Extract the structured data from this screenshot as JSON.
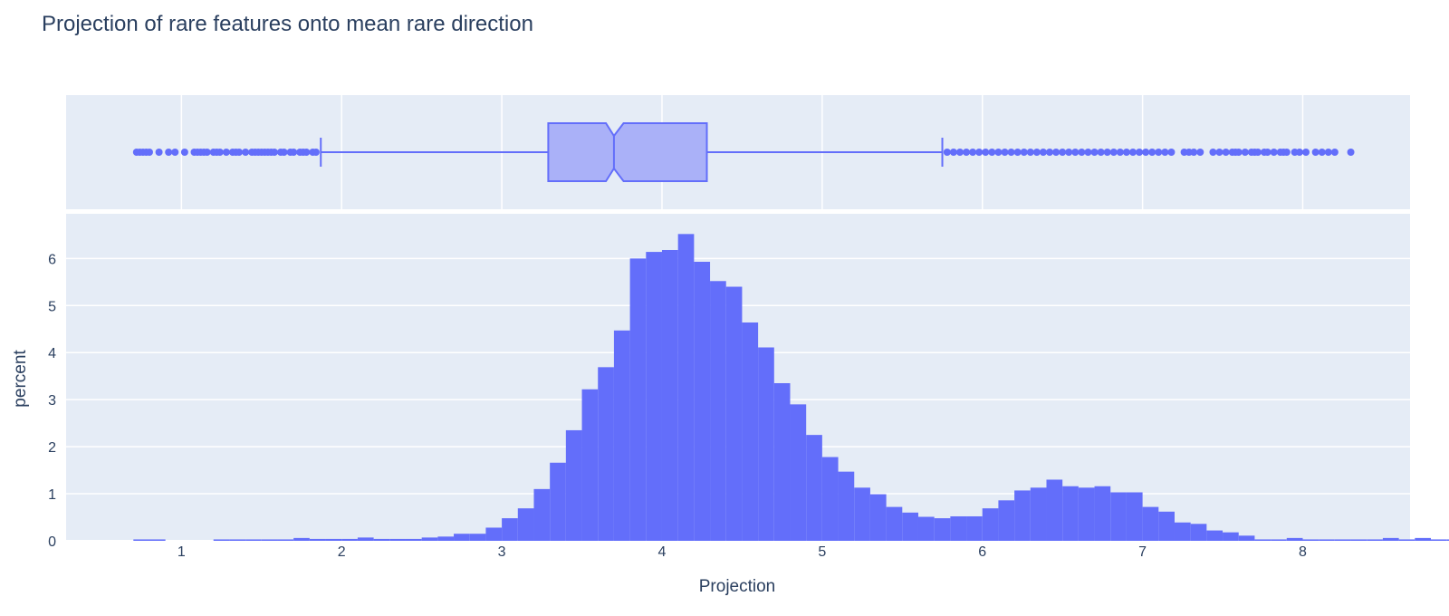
{
  "chart_data": {
    "type": "histogram",
    "title": "Projection of rare features onto mean rare direction",
    "xlabel": "Projection",
    "ylabel": "percent",
    "xlim": [
      0.28,
      8.67
    ],
    "ylim": [
      0,
      6.95
    ],
    "x_ticks": [
      1,
      2,
      3,
      4,
      5,
      6,
      7,
      8
    ],
    "y_ticks": [
      0,
      1,
      2,
      3,
      4,
      5,
      6
    ],
    "grid": true,
    "bin_width": 0.1,
    "bin_start": 0.7,
    "values": [
      0.03,
      0.03,
      0,
      0,
      0,
      0.03,
      0.03,
      0.03,
      0.03,
      0.03,
      0.06,
      0.04,
      0.04,
      0.04,
      0.07,
      0.04,
      0.04,
      0.04,
      0.07,
      0.09,
      0.15,
      0.15,
      0.28,
      0.48,
      0.69,
      1.1,
      1.66,
      2.35,
      3.22,
      3.69,
      4.47,
      6.0,
      6.14,
      6.18,
      6.52,
      5.93,
      5.52,
      5.4,
      4.64,
      4.11,
      3.35,
      2.9,
      2.25,
      1.78,
      1.47,
      1.13,
      0.99,
      0.72,
      0.6,
      0.51,
      0.48,
      0.52,
      0.52,
      0.69,
      0.86,
      1.07,
      1.13,
      1.3,
      1.16,
      1.13,
      1.16,
      1.03,
      1.03,
      0.72,
      0.62,
      0.39,
      0.36,
      0.22,
      0.18,
      0.11,
      0.03,
      0.03,
      0.06,
      0.03,
      0.03,
      0.03,
      0.03,
      0.03,
      0.06,
      0.03,
      0.06,
      0.03,
      0.03,
      0.02
    ],
    "box": {
      "q1": 3.29,
      "median": 3.7,
      "q3": 4.28,
      "lower_fence": 1.87,
      "upper_fence": 5.75,
      "notch_low": 3.65,
      "notch_high": 3.76,
      "outliers": [
        0.72,
        0.74,
        0.76,
        0.78,
        0.8,
        0.86,
        0.92,
        1.02,
        0.96,
        1.08,
        1.1,
        1.12,
        1.14,
        1.16,
        1.2,
        1.22,
        1.24,
        1.28,
        1.32,
        1.34,
        1.36,
        1.4,
        1.44,
        1.46,
        1.48,
        1.5,
        1.52,
        1.54,
        1.56,
        1.58,
        1.62,
        1.64,
        1.68,
        1.7,
        1.74,
        1.76,
        1.78,
        1.82,
        1.84,
        5.78,
        5.82,
        5.86,
        5.9,
        5.94,
        5.98,
        6.02,
        6.06,
        6.1,
        6.14,
        6.18,
        6.22,
        6.26,
        6.3,
        6.34,
        6.38,
        6.42,
        6.46,
        6.5,
        6.54,
        6.58,
        6.62,
        6.66,
        6.7,
        6.74,
        6.78,
        6.82,
        6.86,
        6.9,
        6.94,
        6.98,
        7.02,
        7.06,
        7.1,
        7.14,
        7.18,
        7.26,
        7.29,
        7.32,
        7.36,
        7.44,
        7.48,
        7.52,
        7.56,
        7.58,
        7.6,
        7.64,
        7.68,
        7.7,
        7.72,
        7.76,
        7.78,
        7.82,
        7.86,
        7.88,
        7.9,
        7.95,
        7.98,
        8.02,
        8.08,
        8.12,
        8.16,
        8.2,
        8.3
      ]
    },
    "colors": {
      "bar": "#636efa",
      "box_fill": "#aab1f8",
      "plot_bg": "#e5ecf6",
      "grid": "#ffffff",
      "text": "#2a3f5f"
    }
  }
}
